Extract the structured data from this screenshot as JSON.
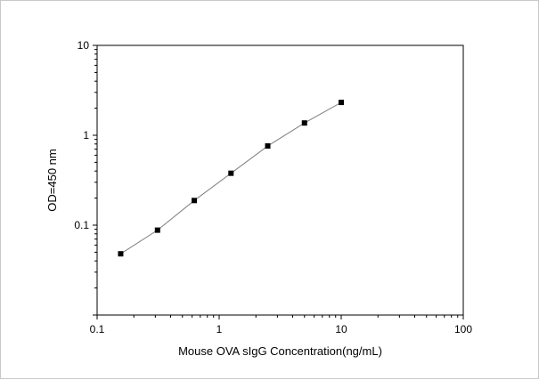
{
  "chart_data": {
    "type": "scatter",
    "title": "",
    "xlabel": "Mouse OVA sIgG Concentration(ng/mL)",
    "ylabel": "OD=450 nm",
    "x_scale": "log",
    "y_scale": "log",
    "xlim": [
      0.1,
      100
    ],
    "ylim": [
      0.01,
      10
    ],
    "x_ticks": [
      {
        "value": 0.1,
        "label": "0.1"
      },
      {
        "value": 1,
        "label": "1"
      },
      {
        "value": 10,
        "label": "10"
      },
      {
        "value": 100,
        "label": "100"
      }
    ],
    "y_ticks": [
      {
        "value": 0.1,
        "label": "0.1"
      },
      {
        "value": 1,
        "label": "1"
      },
      {
        "value": 10,
        "label": "10"
      }
    ],
    "grid": false,
    "legend": "none",
    "series": [
      {
        "x": [
          0.156,
          0.3125,
          0.625,
          1.25,
          2.5,
          5,
          10
        ],
        "y": [
          0.048,
          0.088,
          0.188,
          0.378,
          0.76,
          1.37,
          2.32
        ],
        "marker": "square",
        "marker_color": "#000000",
        "line_color": "#7f7f7f"
      }
    ]
  }
}
